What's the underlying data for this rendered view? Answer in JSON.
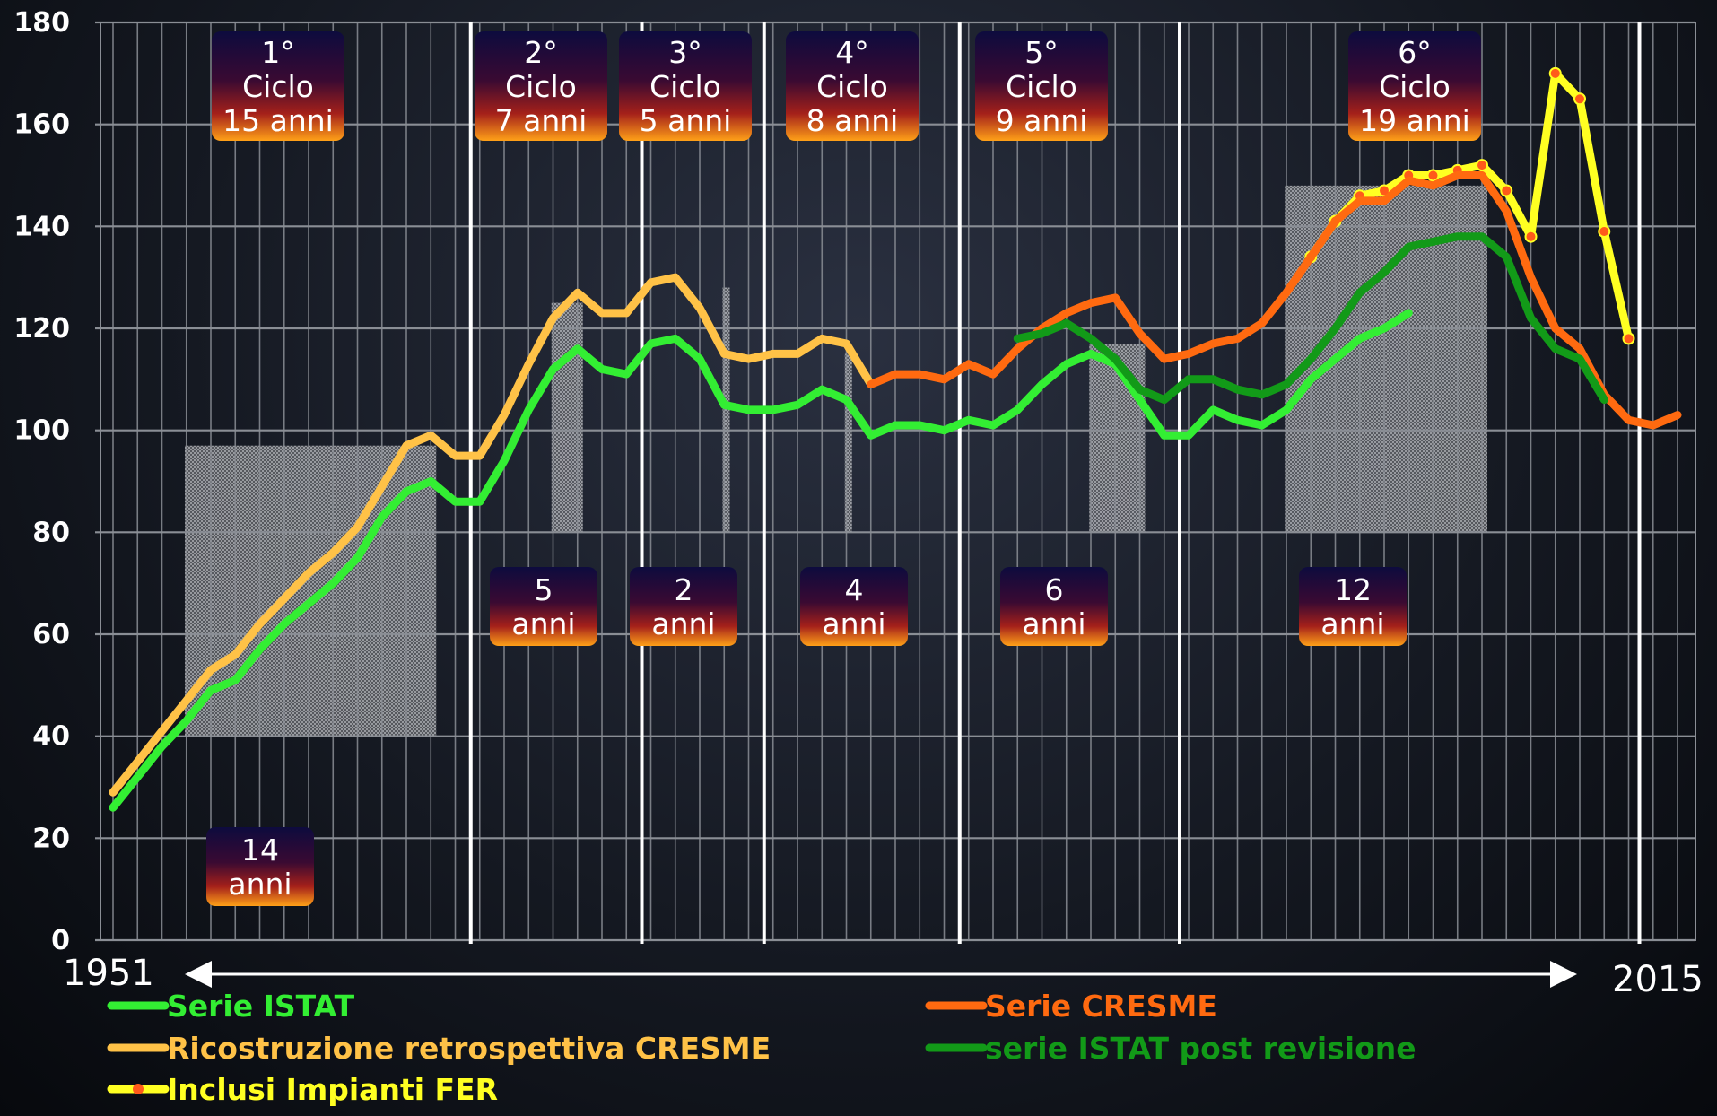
{
  "chart_data": {
    "type": "line",
    "x_start_label": "1951",
    "x_end_label": "2015",
    "yticks": [
      "0",
      "20",
      "40",
      "60",
      "80",
      "100",
      "120",
      "140",
      "160",
      "180"
    ],
    "ylim": [
      0,
      180
    ],
    "xlim": [
      1951,
      2015
    ],
    "grid": true,
    "series": [
      {
        "name": "Serie ISTAT",
        "color": "#33ee33",
        "x": [
          1951,
          1952,
          1953,
          1954,
          1955,
          1956,
          1957,
          1958,
          1959,
          1960,
          1961,
          1962,
          1963,
          1964,
          1965,
          1966,
          1967,
          1968,
          1969,
          1970,
          1971,
          1972,
          1973,
          1974,
          1975,
          1976,
          1977,
          1978,
          1979,
          1980,
          1981,
          1982,
          1983,
          1984,
          1985,
          1986,
          1987,
          1988,
          1989,
          1990,
          1991,
          1992,
          1993,
          1994,
          1995,
          1996,
          1997,
          1998,
          1999,
          2000,
          2001,
          2002,
          2003,
          2004,
          2005,
          2006,
          2007,
          2008
        ],
        "y": [
          26,
          32,
          38,
          43,
          49,
          51,
          57,
          62,
          66,
          70,
          75,
          83,
          88,
          90,
          86,
          86,
          94,
          104,
          112,
          116,
          112,
          111,
          117,
          118,
          114,
          105,
          104,
          104,
          105,
          108,
          106,
          99,
          101,
          101,
          100,
          102,
          101,
          104,
          109,
          113,
          115,
          113,
          106,
          99,
          99,
          104,
          102,
          101,
          104,
          110,
          114,
          118,
          120,
          123,
          null,
          null,
          null,
          null
        ]
      },
      {
        "name": "Ricostruzione retrospettiva CRESME",
        "color": "#ffc247",
        "x": [
          1951,
          1952,
          1953,
          1954,
          1955,
          1956,
          1957,
          1958,
          1959,
          1960,
          1961,
          1962,
          1963,
          1964,
          1965,
          1966,
          1967,
          1968,
          1969,
          1970,
          1971,
          1972,
          1973,
          1974,
          1975,
          1976,
          1977,
          1978,
          1979,
          1980,
          1981,
          1982
        ],
        "y": [
          29,
          35,
          41,
          47,
          53,
          56,
          62,
          67,
          72,
          76,
          81,
          89,
          97,
          99,
          95,
          95,
          103,
          113,
          122,
          127,
          123,
          123,
          129,
          130,
          124,
          115,
          114,
          115,
          115,
          118,
          117,
          109
        ]
      },
      {
        "name": "Inclusi Impianti FER",
        "color": "#ffff22",
        "x": [
          2000,
          2001,
          2002,
          2003,
          2004,
          2005,
          2006,
          2007,
          2008,
          2009,
          2010,
          2011,
          2012,
          2013,
          2014,
          2015
        ],
        "y": [
          134,
          141,
          146,
          147,
          150,
          150,
          151,
          152,
          147,
          138,
          170,
          165,
          139,
          118,
          null,
          null
        ]
      },
      {
        "name": "Serie CRESME",
        "color": "#ff6a10",
        "x": [
          1982,
          1983,
          1984,
          1985,
          1986,
          1987,
          1988,
          1989,
          1990,
          1991,
          1992,
          1993,
          1994,
          1995,
          1996,
          1997,
          1998,
          1999,
          2000,
          2001,
          2002,
          2003,
          2004,
          2005,
          2006,
          2007,
          2008,
          2009,
          2010,
          2011,
          2012,
          2013,
          2014,
          2015
        ],
        "y": [
          109,
          111,
          111,
          110,
          113,
          111,
          116,
          120,
          123,
          125,
          126,
          119,
          114,
          115,
          117,
          118,
          121,
          127,
          134,
          141,
          145,
          145,
          149,
          148,
          150,
          150,
          143,
          130,
          120,
          116,
          107,
          102,
          101,
          103
        ]
      },
      {
        "name": "serie ISTAT post revisione",
        "color": "#129a18",
        "x": [
          1988,
          1989,
          1990,
          1991,
          1992,
          1993,
          1994,
          1995,
          1996,
          1997,
          1998,
          1999,
          2000,
          2001,
          2002,
          2003,
          2004,
          2005,
          2006,
          2007,
          2008,
          2009,
          2010,
          2011,
          2012
        ],
        "y": [
          118,
          119,
          121,
          118,
          114,
          108,
          106,
          110,
          110,
          108,
          107,
          109,
          114,
          120,
          127,
          131,
          136,
          137,
          138,
          138,
          134,
          122,
          116,
          114,
          106
        ]
      }
    ],
    "cycles": [
      {
        "label": "1°\nCiclo\n15 anni",
        "from": 1951,
        "to": 1965
      },
      {
        "label": "2°\nCiclo\n7 anni",
        "from": 1966,
        "to": 1972
      },
      {
        "label": "3°\nCiclo\n5 anni",
        "from": 1973,
        "to": 1977
      },
      {
        "label": "4°\nCiclo\n8 anni",
        "from": 1978,
        "to": 1985
      },
      {
        "label": "5°\nCiclo\n9 anni",
        "from": 1986,
        "to": 1994
      },
      {
        "label": "6°\nCiclo\n19 anni",
        "from": 1995,
        "to": 2013
      }
    ],
    "expansion_phases": [
      {
        "label": "14\nanni",
        "from": 1951,
        "to": 1964
      },
      {
        "label": "5\nanni",
        "from": 1966,
        "to": 1970
      },
      {
        "label": "2\nanni",
        "from": 1973,
        "to": 1974
      },
      {
        "label": "4\nanni",
        "from": 1978,
        "to": 1981
      },
      {
        "label": "6\nanni",
        "from": 1988,
        "to": 1993
      },
      {
        "label": "12\nanni",
        "from": 1996,
        "to": 2007
      }
    ],
    "legend": [
      {
        "label": "Serie ISTAT",
        "color": "#33ee33",
        "markers": false
      },
      {
        "label": "Serie CRESME",
        "color": "#ff6a10",
        "markers": false
      },
      {
        "label": "Ricostruzione retrospettiva CRESME",
        "color": "#ffc247",
        "markers": false
      },
      {
        "label": "serie ISTAT post revisione",
        "color": "#129a18",
        "markers": false
      },
      {
        "label": "Inclusi Impianti FER",
        "color": "#ffff22",
        "markers": true
      }
    ],
    "legend_position": "bottom",
    "colors": {
      "grid": "#8a8e95",
      "cycle_divider": "#ffffff",
      "shading": "#a6a6a6",
      "box_top": "#0d0b3e",
      "box_mid": "#4a0a2a",
      "box_bottom": "#ff9a14",
      "fer_marker": "#ff5a1a"
    }
  }
}
